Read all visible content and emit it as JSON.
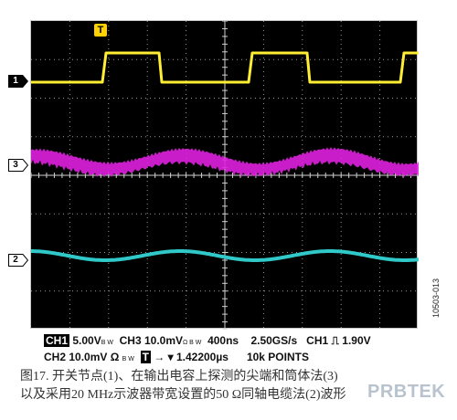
{
  "scope": {
    "trigger_marker": "T",
    "channel_markers": [
      {
        "label": "1",
        "color": "#ffffff",
        "text_color": "#000000"
      },
      {
        "label": "3",
        "color": "#ffffff",
        "text_color": "#000000"
      },
      {
        "label": "2",
        "color": "#ffffff",
        "text_color": "#000000"
      }
    ],
    "traces": [
      {
        "name": "CH1",
        "color": "#ffee33",
        "kind": "square"
      },
      {
        "name": "CH3",
        "color": "#e020e0",
        "kind": "noisy-sine"
      },
      {
        "name": "CH2",
        "color": "#30c8c8",
        "kind": "sine"
      }
    ],
    "side_id": "10503-013"
  },
  "status": {
    "row1": {
      "ch1_label": "CH1",
      "ch1_scale": "5.00V",
      "ch1_bw": "B W",
      "ch3_scale": "CH3 10.0mV",
      "ch3_bw": "Ω B W",
      "timebase": "400ns",
      "sample_rate": "2.50GS/s",
      "trig_src": "CH1",
      "trig_edge": "⎍",
      "trig_level": "1.90V"
    },
    "row2": {
      "ch2_scale": "CH2 10.0mV Ω",
      "ch2_bw": "B W",
      "trig_box": "T",
      "trig_pos": "→ ▾ 1.42200µs",
      "record": "10k POINTS"
    }
  },
  "caption": {
    "line1": "图17. 开关节点(1)、在输出电容上探测的尖端和筒体法(3)",
    "line2": "以及采用20 MHz示波器带宽设置的50 Ω同轴电缆法(2)波形"
  },
  "watermark": "PRBTEK"
}
